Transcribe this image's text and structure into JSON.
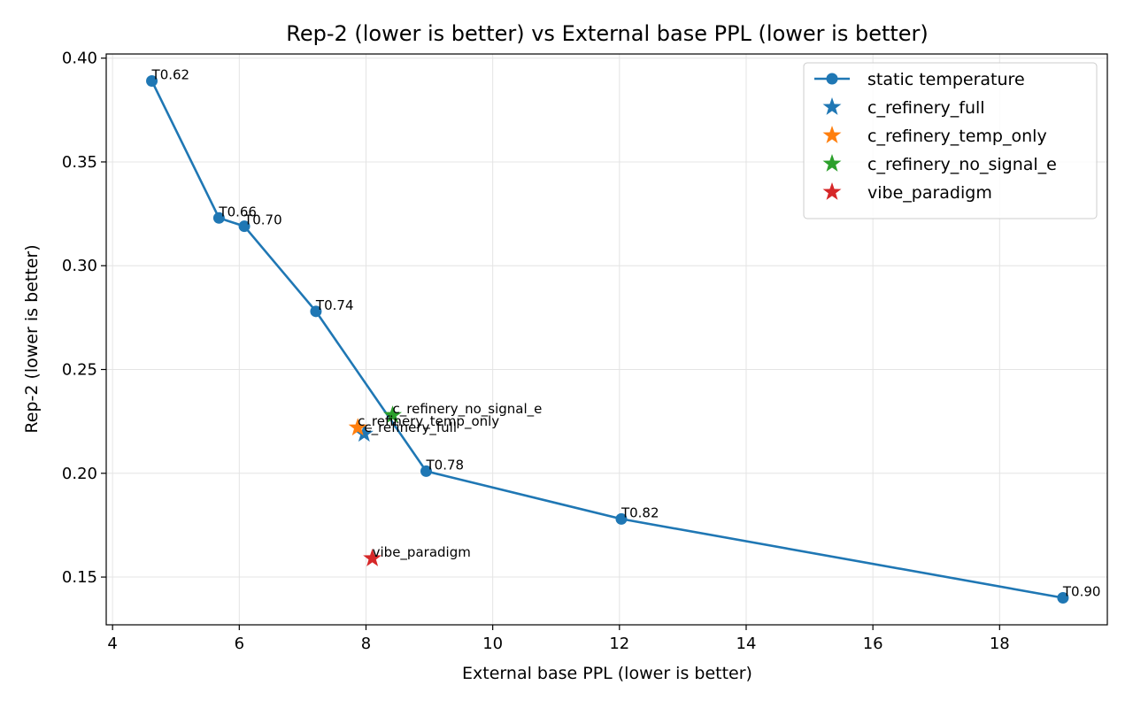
{
  "chart_data": {
    "type": "scatter",
    "title": "Rep-2 (lower is better) vs External base PPL (lower is better)",
    "xlabel": "External base PPL (lower is better)",
    "ylabel": "Rep-2 (lower is better)",
    "xlim": [
      3.9,
      19.7
    ],
    "ylim": [
      0.127,
      0.402
    ],
    "xticks": [
      4,
      6,
      8,
      10,
      12,
      14,
      16,
      18
    ],
    "xtick_labels": [
      "4",
      "6",
      "8",
      "10",
      "12",
      "14",
      "16",
      "18"
    ],
    "yticks": [
      0.15,
      0.2,
      0.25,
      0.3,
      0.35,
      0.4
    ],
    "ytick_labels": [
      "0.15",
      "0.20",
      "0.25",
      "0.30",
      "0.35",
      "0.40"
    ],
    "grid": true,
    "legend_position": "top-right",
    "series": [
      {
        "name": "static temperature",
        "kind": "line-marker",
        "color": "#1f77b4",
        "points": [
          {
            "x": 4.62,
            "y": 0.389,
            "label": "T0.62"
          },
          {
            "x": 5.68,
            "y": 0.323,
            "label": "T0.66"
          },
          {
            "x": 6.08,
            "y": 0.319,
            "label": "T0.70"
          },
          {
            "x": 7.21,
            "y": 0.278,
            "label": "T0.74"
          },
          {
            "x": 8.95,
            "y": 0.201,
            "label": "T0.78"
          },
          {
            "x": 12.03,
            "y": 0.178,
            "label": "T0.82"
          },
          {
            "x": 19.0,
            "y": 0.14,
            "label": "T0.90"
          }
        ]
      },
      {
        "name": "c_refinery_full",
        "kind": "star",
        "color": "#1f77b4",
        "points": [
          {
            "x": 7.97,
            "y": 0.219,
            "label": "c_refinery_full"
          }
        ]
      },
      {
        "name": "c_refinery_temp_only",
        "kind": "star",
        "color": "#ff7f0e",
        "points": [
          {
            "x": 7.87,
            "y": 0.222,
            "label": "c_refinery_temp_only"
          }
        ]
      },
      {
        "name": "c_refinery_no_signal_e",
        "kind": "star",
        "color": "#2ca02c",
        "points": [
          {
            "x": 8.42,
            "y": 0.228,
            "label": "c_refinery_no_signal_e"
          }
        ]
      },
      {
        "name": "vibe_paradigm",
        "kind": "star",
        "color": "#d62728",
        "points": [
          {
            "x": 8.1,
            "y": 0.159,
            "label": "vibe_paradigm"
          }
        ]
      }
    ]
  }
}
